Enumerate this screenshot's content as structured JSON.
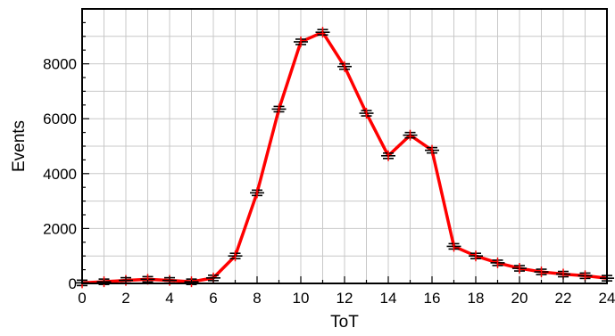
{
  "chart_data": {
    "type": "line",
    "xlabel": "ToT",
    "ylabel": "Events",
    "xlim": [
      0,
      24
    ],
    "ylim": [
      0,
      10000
    ],
    "grid": true,
    "legend": "none",
    "x_ticks": [
      0,
      2,
      4,
      6,
      8,
      10,
      12,
      14,
      16,
      18,
      20,
      22,
      24
    ],
    "y_ticks": [
      0,
      2000,
      4000,
      6000,
      8000
    ],
    "x_tick_labels": [
      "0",
      "2",
      "4",
      "6",
      "8",
      "10",
      "12",
      "14",
      "16",
      "18",
      "20",
      "22",
      "24"
    ],
    "y_tick_labels": [
      "0",
      "2000",
      "4000",
      "6000",
      "8000"
    ],
    "series": [
      {
        "color": "#ff0000",
        "marker_color": "#000000",
        "points": [
          {
            "x": 0,
            "y": 20
          },
          {
            "x": 1,
            "y": 60
          },
          {
            "x": 2,
            "y": 110
          },
          {
            "x": 3,
            "y": 150
          },
          {
            "x": 4,
            "y": 110
          },
          {
            "x": 5,
            "y": 60
          },
          {
            "x": 6,
            "y": 200
          },
          {
            "x": 7,
            "y": 1000
          },
          {
            "x": 8,
            "y": 3300
          },
          {
            "x": 9,
            "y": 6350
          },
          {
            "x": 10,
            "y": 8800
          },
          {
            "x": 11,
            "y": 9150
          },
          {
            "x": 12,
            "y": 7900
          },
          {
            "x": 13,
            "y": 6200
          },
          {
            "x": 14,
            "y": 4650
          },
          {
            "x": 15,
            "y": 5400
          },
          {
            "x": 16,
            "y": 4850
          },
          {
            "x": 17,
            "y": 1350
          },
          {
            "x": 18,
            "y": 1000
          },
          {
            "x": 19,
            "y": 750
          },
          {
            "x": 20,
            "y": 550
          },
          {
            "x": 21,
            "y": 420
          },
          {
            "x": 22,
            "y": 340
          },
          {
            "x": 23,
            "y": 280
          },
          {
            "x": 24,
            "y": 190
          }
        ]
      }
    ]
  }
}
